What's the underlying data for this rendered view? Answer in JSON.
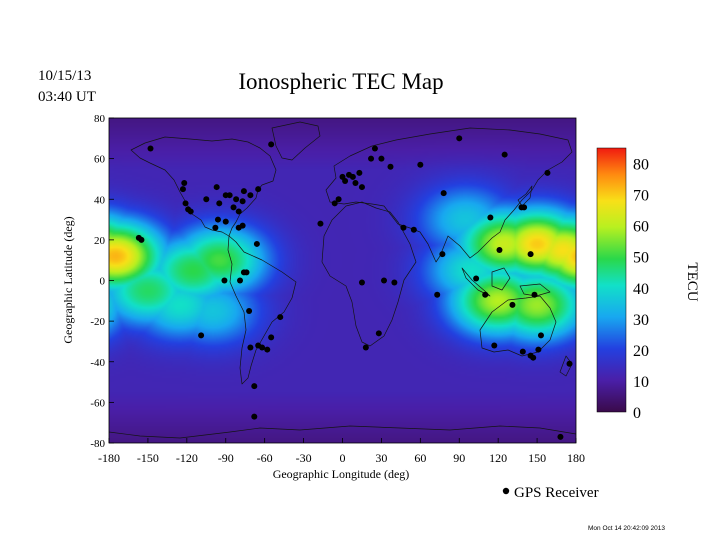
{
  "header": {
    "date": "10/15/13",
    "time": "03:40 UT",
    "title": "Ionospheric TEC Map"
  },
  "footer": {
    "legend_label": "GPS Receiver",
    "generated": "Mon Oct 14 20:42:09 2013"
  },
  "chart_data": {
    "type": "heatmap",
    "title": "Ionospheric TEC Map",
    "xlabel": "Geographic Longitude (deg)",
    "ylabel": "Geographic Latitude (deg)",
    "xlim": [
      -180,
      180
    ],
    "ylim": [
      -80,
      80
    ],
    "x_ticks": [
      "-180",
      "-150",
      "-120",
      "-90",
      "-60",
      "-30",
      "0",
      "30",
      "60",
      "90",
      "120",
      "150",
      "180"
    ],
    "y_ticks": [
      "80",
      "60",
      "40",
      "20",
      "0",
      "-20",
      "-40",
      "-60",
      "-80"
    ],
    "colorbar": {
      "label": "TECU",
      "range": [
        0,
        85
      ],
      "ticks": [
        "80",
        "70",
        "60",
        "50",
        "40",
        "30",
        "20",
        "10",
        "0"
      ]
    },
    "tec_peaks": [
      {
        "lon": -175,
        "lat": 12,
        "tec": 72
      },
      {
        "lon": -150,
        "lat": -5,
        "tec": 48
      },
      {
        "lon": -115,
        "lat": 5,
        "tec": 50
      },
      {
        "lon": -95,
        "lat": 10,
        "tec": 52
      },
      {
        "lon": -125,
        "lat": -12,
        "tec": 40
      },
      {
        "lon": -100,
        "lat": -15,
        "tec": 35
      },
      {
        "lon": 125,
        "lat": 18,
        "tec": 62
      },
      {
        "lon": 150,
        "lat": 18,
        "tec": 70
      },
      {
        "lon": 170,
        "lat": 15,
        "tec": 68
      },
      {
        "lon": 120,
        "lat": -10,
        "tec": 60
      },
      {
        "lon": 150,
        "lat": -12,
        "tec": 58
      },
      {
        "lon": 100,
        "lat": 5,
        "tec": 40
      },
      {
        "lon": 95,
        "lat": 30,
        "tec": 35
      }
    ],
    "gps_receivers": [
      {
        "lon": -148,
        "lat": 65
      },
      {
        "lon": -122,
        "lat": 48
      },
      {
        "lon": -123,
        "lat": 45
      },
      {
        "lon": -121,
        "lat": 38
      },
      {
        "lon": -119,
        "lat": 35
      },
      {
        "lon": -117,
        "lat": 34
      },
      {
        "lon": -105,
        "lat": 40
      },
      {
        "lon": -97,
        "lat": 46
      },
      {
        "lon": -95,
        "lat": 38
      },
      {
        "lon": -90,
        "lat": 42
      },
      {
        "lon": -87,
        "lat": 42
      },
      {
        "lon": -84,
        "lat": 36
      },
      {
        "lon": -82,
        "lat": 40
      },
      {
        "lon": -80,
        "lat": 34
      },
      {
        "lon": -77,
        "lat": 39
      },
      {
        "lon": -76,
        "lat": 44
      },
      {
        "lon": -71,
        "lat": 42
      },
      {
        "lon": -65,
        "lat": 45
      },
      {
        "lon": -96,
        "lat": 30
      },
      {
        "lon": -98,
        "lat": 26
      },
      {
        "lon": -90,
        "lat": 29
      },
      {
        "lon": -80,
        "lat": 26
      },
      {
        "lon": -77,
        "lat": 27
      },
      {
        "lon": -66,
        "lat": 18
      },
      {
        "lon": -55,
        "lat": 67
      },
      {
        "lon": -157,
        "lat": 21
      },
      {
        "lon": -155,
        "lat": 20
      },
      {
        "lon": -91,
        "lat": 0
      },
      {
        "lon": -79,
        "lat": 0
      },
      {
        "lon": -76,
        "lat": 4
      },
      {
        "lon": -74,
        "lat": 4
      },
      {
        "lon": -72,
        "lat": -15
      },
      {
        "lon": -109,
        "lat": -27
      },
      {
        "lon": -71,
        "lat": -33
      },
      {
        "lon": -65,
        "lat": -32
      },
      {
        "lon": -62,
        "lat": -33
      },
      {
        "lon": -58,
        "lat": -34
      },
      {
        "lon": -55,
        "lat": -28
      },
      {
        "lon": -48,
        "lat": -18
      },
      {
        "lon": -68,
        "lat": -52
      },
      {
        "lon": -6,
        "lat": 38
      },
      {
        "lon": -3,
        "lat": 40
      },
      {
        "lon": 0,
        "lat": 51
      },
      {
        "lon": 2,
        "lat": 49
      },
      {
        "lon": 5,
        "lat": 52
      },
      {
        "lon": 8,
        "lat": 51
      },
      {
        "lon": 10,
        "lat": 48
      },
      {
        "lon": 13,
        "lat": 53
      },
      {
        "lon": 15,
        "lat": 46
      },
      {
        "lon": 22,
        "lat": 60
      },
      {
        "lon": 25,
        "lat": 65
      },
      {
        "lon": 30,
        "lat": 60
      },
      {
        "lon": 37,
        "lat": 56
      },
      {
        "lon": 60,
        "lat": 57
      },
      {
        "lon": 90,
        "lat": 70
      },
      {
        "lon": -17,
        "lat": 28
      },
      {
        "lon": 15,
        "lat": -1
      },
      {
        "lon": 32,
        "lat": 0
      },
      {
        "lon": 40,
        "lat": -1
      },
      {
        "lon": 47,
        "lat": 26
      },
      {
        "lon": 55,
        "lat": 25
      },
      {
        "lon": 28,
        "lat": -26
      },
      {
        "lon": 18,
        "lat": -33
      },
      {
        "lon": 78,
        "lat": 43
      },
      {
        "lon": 77,
        "lat": 13
      },
      {
        "lon": 73,
        "lat": -7
      },
      {
        "lon": 114,
        "lat": 31
      },
      {
        "lon": 121,
        "lat": 15
      },
      {
        "lon": 125,
        "lat": 62
      },
      {
        "lon": 140,
        "lat": 36
      },
      {
        "lon": 138,
        "lat": 36
      },
      {
        "lon": 145,
        "lat": 13
      },
      {
        "lon": 158,
        "lat": 53
      },
      {
        "lon": 103,
        "lat": 1
      },
      {
        "lon": 110,
        "lat": -7
      },
      {
        "lon": 117,
        "lat": -32
      },
      {
        "lon": 131,
        "lat": -12
      },
      {
        "lon": 139,
        "lat": -35
      },
      {
        "lon": 147,
        "lat": -38
      },
      {
        "lon": 151,
        "lat": -34
      },
      {
        "lon": 153,
        "lat": -27
      },
      {
        "lon": 145,
        "lat": -37
      },
      {
        "lon": 175,
        "lat": -41
      },
      {
        "lon": 168,
        "lat": -77
      },
      {
        "lon": -68,
        "lat": -67
      },
      {
        "lon": 148,
        "lat": -7
      }
    ]
  }
}
